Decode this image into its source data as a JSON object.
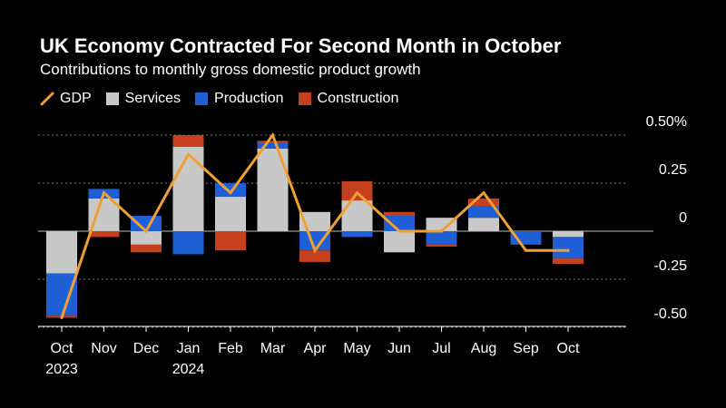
{
  "header": {
    "title": "UK Economy Contracted For Second Month in October",
    "subtitle": "Contributions to monthly gross domestic product growth"
  },
  "legend": {
    "gdp": "GDP",
    "services": "Services",
    "production": "Production",
    "construction": "Construction"
  },
  "colors": {
    "gdp": "#f0a033",
    "services": "#c8c8c8",
    "production": "#1f5fd6",
    "construction": "#c4401f",
    "gridline": "#777777",
    "zeroline": "#bbbbbb"
  },
  "chart_data": {
    "type": "bar",
    "stacked": true,
    "title": "UK Economy Contracted For Second Month in October",
    "subtitle": "Contributions to monthly gross domestic product growth",
    "categories": [
      "Oct",
      "Nov",
      "Dec",
      "Jan",
      "Feb",
      "Mar",
      "Apr",
      "May",
      "Jun",
      "Jul",
      "Aug",
      "Sep",
      "Oct"
    ],
    "category_sublabels": [
      "2023",
      "",
      "",
      "2024",
      "",
      "",
      "",
      "",
      "",
      "",
      "",
      "",
      ""
    ],
    "y_tick_values": [
      0.5,
      0.25,
      0,
      -0.25,
      -0.5
    ],
    "y_tick_labels": [
      "0.50%",
      "0.25",
      "0",
      "-0.25",
      "-0.50"
    ],
    "ylim": [
      -0.52,
      0.55
    ],
    "axis_side": "right",
    "series": [
      {
        "name": "Services",
        "type": "bar",
        "values": [
          -0.22,
          0.17,
          -0.07,
          0.44,
          0.18,
          0.43,
          0.1,
          0.16,
          -0.11,
          0.07,
          0.07,
          0.0,
          -0.03
        ]
      },
      {
        "name": "Production",
        "type": "bar",
        "values": [
          -0.22,
          0.05,
          0.08,
          -0.12,
          0.07,
          0.03,
          -0.1,
          -0.03,
          0.08,
          -0.07,
          0.06,
          -0.07,
          -0.11
        ]
      },
      {
        "name": "Construction",
        "type": "bar",
        "values": [
          -0.01,
          -0.03,
          -0.04,
          0.06,
          -0.1,
          0.01,
          -0.06,
          0.1,
          0.02,
          -0.01,
          0.04,
          0.0,
          -0.03
        ]
      },
      {
        "name": "GDP",
        "type": "line",
        "values": [
          -0.45,
          0.2,
          0.0,
          0.4,
          0.2,
          0.5,
          -0.1,
          0.2,
          0.0,
          0.0,
          0.2,
          -0.1,
          -0.1
        ]
      }
    ]
  }
}
